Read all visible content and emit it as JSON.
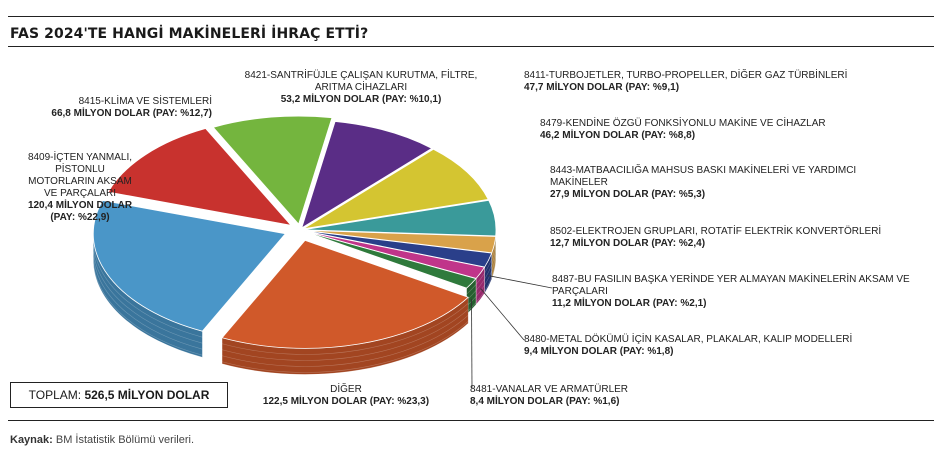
{
  "title": "FAS 2024'TE HANGİ MAKİNELERİ İHRAÇ ETTİ?",
  "total": {
    "label": "TOPLAM:",
    "value": "526,5 MİLYON DOLAR"
  },
  "source": {
    "label": "Kaynak:",
    "text": "BM İstatistik Bölümü verileri."
  },
  "chart_data": {
    "type": "pie",
    "title": "FAS 2024'TE HANGİ MAKİNELERİ İHRAÇ ETTİ?",
    "unit": "MİLYON DOLAR",
    "total": 526.5,
    "slices": [
      {
        "label": "8411-TURBOJETLER, TURBO-PROPELLER, DİĞER GAZ TÜRBİNLERİ",
        "value": 47.7,
        "share": 9.1,
        "value_text": "47,7 MİLYON DOLAR (PAY: %9,1)",
        "color": "#5a2d86"
      },
      {
        "label": "8479-KENDİNE ÖZGÜ FONKSİYONLU MAKİNE VE CİHAZLAR",
        "value": 46.2,
        "share": 8.8,
        "value_text": "46,2 MİLYON DOLAR (PAY: %8,8)",
        "color": "#d4c531"
      },
      {
        "label": "8443-MATBAACILIĞA MAHSUS BASKI MAKİNELERİ VE YARDIMCI MAKİNELER",
        "value": 27.9,
        "share": 5.3,
        "value_text": "27,9 MİLYON DOLAR (PAY: %5,3)",
        "color": "#3a9a9a"
      },
      {
        "label": "8502-ELEKTROJEN GRUPLARI, ROTATİF ELEKTRİK KONVERTÖRLERİ",
        "value": 12.7,
        "share": 2.4,
        "value_text": "12,7 MİLYON DOLAR (PAY: %2,4)",
        "color": "#d9a24a"
      },
      {
        "label": "8487-BU FASILIN BAŞKA YERİNDE YER ALMAYAN MAKİNELERİN AKSAM VE PARÇALARI",
        "value": 11.2,
        "share": 2.1,
        "value_text": "11,2 MİLYON DOLAR (PAY: %2,1)",
        "color": "#2a3f8a"
      },
      {
        "label": "8480-METAL DÖKÜMÜ İÇİN KASALAR, PLAKALAR, KALIP MODELLERİ",
        "value": 9.4,
        "share": 1.8,
        "value_text": "9,4 MİLYON DOLAR (PAY: %1,8)",
        "color": "#c0358a"
      },
      {
        "label": "8481-VANALAR VE ARMATÜRLER",
        "value": 8.4,
        "share": 1.6,
        "value_text": "8,4 MİLYON DOLAR (PAY: %1,6)",
        "color": "#2f7a3c"
      },
      {
        "label": "DİĞER",
        "value": 122.5,
        "share": 23.3,
        "value_text": "122,5 MİLYON DOLAR (PAY: %23,3)",
        "color": "#d0592a"
      },
      {
        "label": "8409-İÇTEN YANMALI, PİSTONLU MOTORLARIN AKSAM VE PARÇALARI",
        "value": 120.4,
        "share": 22.9,
        "value_text": "120,4 MİLYON DOLAR (PAY: %22,9)",
        "color": "#4a96c8"
      },
      {
        "label": "8415-KLİMA VE SİSTEMLERİ",
        "value": 66.8,
        "share": 12.7,
        "value_text": "66,8 MİLYON DOLAR (PAY: %12,7)",
        "color": "#c8322e"
      },
      {
        "label": "8421-SANTRİFÜJLE ÇALIŞAN KURUTMA, FİLTRE, ARITMA CİHAZLARI",
        "value": 53.2,
        "share": 10.1,
        "value_text": "53,2 MİLYON DOLAR (PAY: %10,1)",
        "color": "#74b53e"
      }
    ]
  }
}
